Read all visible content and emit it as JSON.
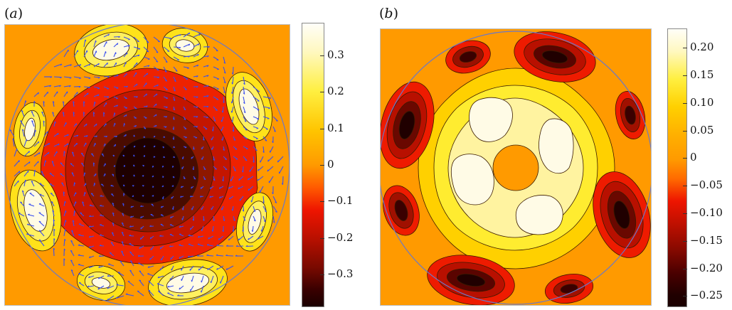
{
  "panels": [
    {
      "label": "a",
      "colorbar": {
        "ticks": [
          "0.3",
          "0.2",
          "0.1",
          "0",
          "−0.1",
          "−0.2",
          "−0.3"
        ],
        "tick_values": [
          0.3,
          0.2,
          0.1,
          0,
          -0.1,
          -0.2,
          -0.3
        ],
        "range": [
          -0.39,
          0.39
        ]
      }
    },
    {
      "label": "b",
      "colorbar": {
        "ticks": [
          "0.20",
          "0.15",
          "0.10",
          "0.05",
          "0",
          "−0.05",
          "−0.10",
          "−0.15",
          "−0.20",
          "−0.25"
        ],
        "tick_values": [
          0.2,
          0.15,
          0.1,
          0.05,
          0,
          -0.05,
          -0.1,
          -0.15,
          -0.2,
          -0.25
        ],
        "range": [
          -0.27,
          0.235
        ]
      }
    }
  ],
  "colors": {
    "background": "#ff9a00",
    "white": "#fffbe6",
    "yellow": "#ffe21a",
    "orange": "#ff9a00",
    "red": "#ee1b00",
    "dark_red": "#8a1a00",
    "black_red": "#2a0000",
    "circle": "#6a78c8",
    "vectors": "#3a4ff0"
  }
}
